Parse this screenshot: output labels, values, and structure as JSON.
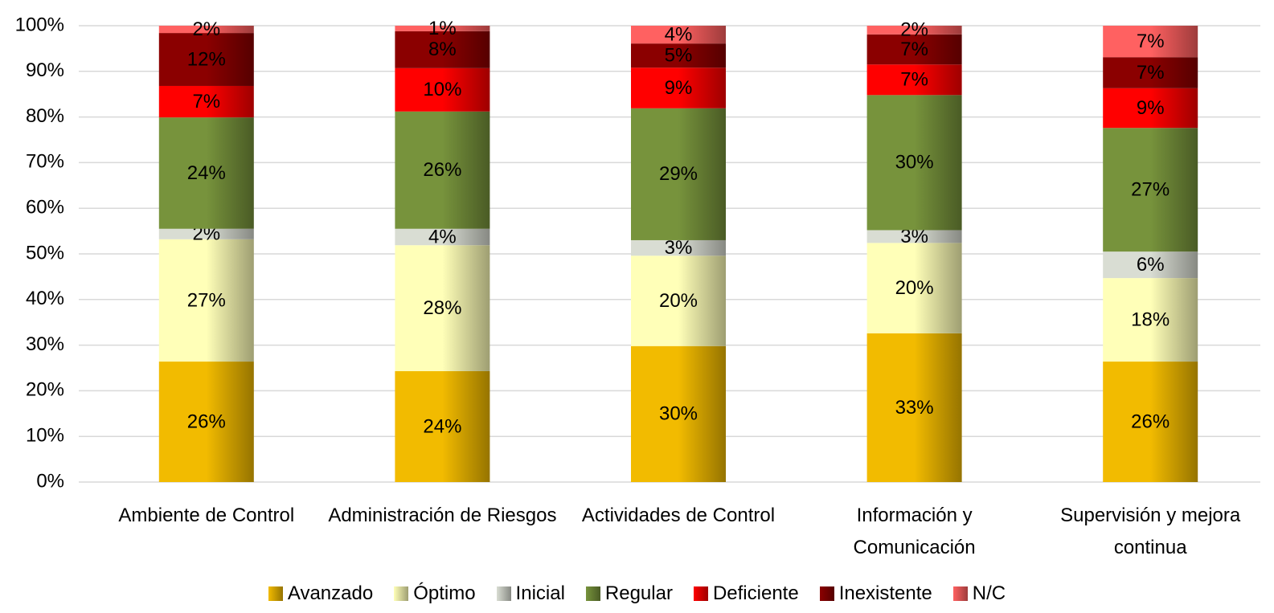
{
  "chart_data": {
    "type": "stacked_bar",
    "categories": [
      "Ambiente de Control",
      "Administración de Riesgos",
      "Actividades de Control",
      "Información y Comunicación",
      "Supervisión y mejora continua"
    ],
    "series": [
      {
        "name": "Avanzado",
        "color": "#f2bb00",
        "values": [
          26.4,
          24.3,
          29.8,
          32.6,
          26.4
        ],
        "value_labels": [
          "26%",
          "24%",
          "30%",
          "33%",
          "26%"
        ]
      },
      {
        "name": "Óptimo",
        "color": "#ffffb8",
        "values": [
          26.8,
          27.6,
          19.8,
          19.8,
          18.3
        ],
        "value_labels": [
          "27%",
          "28%",
          "20%",
          "20%",
          "18%"
        ]
      },
      {
        "name": "Inicial",
        "color": "#d9ddd3",
        "values": [
          2.3,
          3.6,
          3.4,
          2.8,
          5.8
        ],
        "value_labels": [
          "2%",
          "4%",
          "3%",
          "3%",
          "6%"
        ]
      },
      {
        "name": "Regular",
        "color": "#77933c",
        "values": [
          24.4,
          25.7,
          28.9,
          29.6,
          27.1
        ],
        "value_labels": [
          "24%",
          "26%",
          "29%",
          "30%",
          "27%"
        ]
      },
      {
        "name": "Deficiente",
        "color": "#ff0000",
        "values": [
          6.9,
          9.5,
          8.9,
          6.7,
          8.7
        ],
        "value_labels": [
          "7%",
          "10%",
          "9%",
          "7%",
          "9%"
        ]
      },
      {
        "name": "Inexistente",
        "color": "#8b0000",
        "values": [
          11.6,
          8.1,
          5.3,
          6.6,
          6.8
        ],
        "value_labels": [
          "12%",
          "8%",
          "5%",
          "7%",
          "7%"
        ]
      },
      {
        "name": "N/C",
        "color": "#ff6161",
        "values": [
          1.6,
          1.2,
          3.9,
          1.9,
          6.9
        ],
        "value_labels": [
          "2%",
          "1%",
          "4%",
          "2%",
          "7%"
        ]
      }
    ],
    "ylim": [
      0,
      100
    ],
    "yticks": [
      {
        "value": 0,
        "label": "0%"
      },
      {
        "value": 10,
        "label": "10%"
      },
      {
        "value": 20,
        "label": "20%"
      },
      {
        "value": 30,
        "label": "30%"
      },
      {
        "value": 40,
        "label": "40%"
      },
      {
        "value": 50,
        "label": "50%"
      },
      {
        "value": 60,
        "label": "60%"
      },
      {
        "value": 70,
        "label": "70%"
      },
      {
        "value": 80,
        "label": "80%"
      },
      {
        "value": 90,
        "label": "90%"
      },
      {
        "value": 100,
        "label": "100%"
      }
    ],
    "grid": true,
    "legend": "bottom"
  }
}
